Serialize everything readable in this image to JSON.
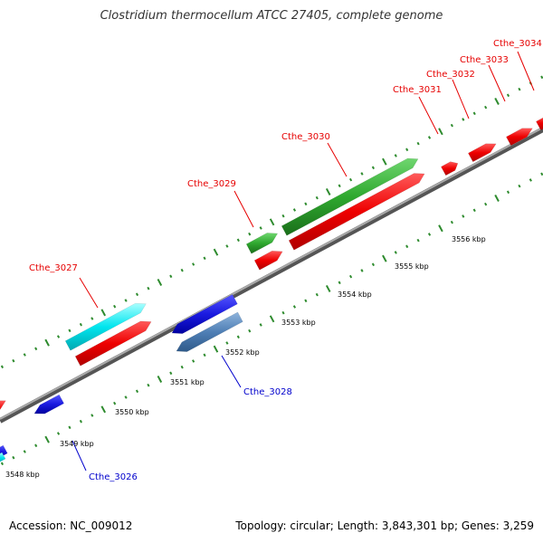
{
  "title": "Clostridium thermocellum ATCC 27405, complete genome",
  "accession": "Accession: NC_009012",
  "summary": "Topology: circular; Length: 3,843,301 bp; Genes: 3,259",
  "colors": {
    "label_forward": "#e60000",
    "label_reverse": "#0000cc",
    "backbone": "#888888",
    "tick": "#2e8b2e"
  },
  "kbp_labels": [
    "3548 kbp",
    "3549 kbp",
    "3550 kbp",
    "3551 kbp",
    "3552 kbp",
    "3553 kbp",
    "3554 kbp",
    "3555 kbp",
    "3556 kbp"
  ],
  "gene_labels": {
    "cthe_3026": "Cthe_3026",
    "cthe_3027": "Cthe_3027",
    "cthe_3028": "Cthe_3028",
    "cthe_3029": "Cthe_3029",
    "cthe_3030": "Cthe_3030",
    "cthe_3031": "Cthe_3031",
    "cthe_3032": "Cthe_3032",
    "cthe_3033": "Cthe_3033",
    "cthe_3034": "Cthe_3034"
  }
}
